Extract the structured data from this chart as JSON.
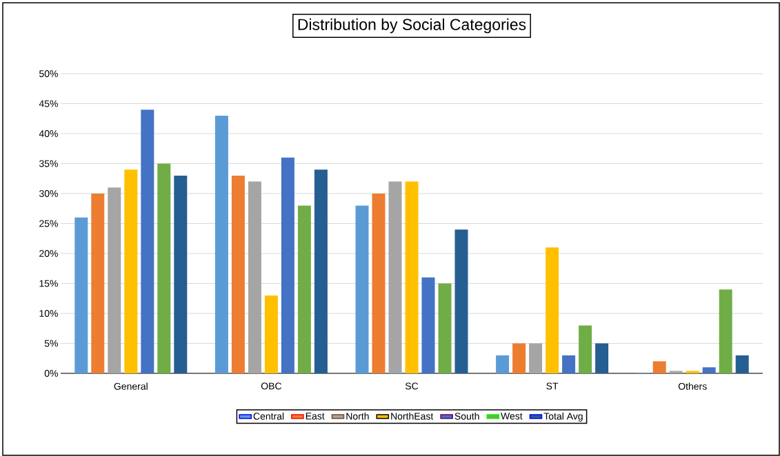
{
  "chart_data": {
    "type": "bar",
    "title": "Distribution by Social Categories",
    "categories": [
      "General",
      "OBC",
      "SC",
      "ST",
      "Others"
    ],
    "series": [
      {
        "name": "Central",
        "color": "#5b9bd5",
        "values": [
          26,
          43,
          28,
          3,
          0.1
        ]
      },
      {
        "name": "East",
        "color": "#ed7d31",
        "values": [
          30,
          33,
          30,
          5,
          2
        ]
      },
      {
        "name": "North",
        "color": "#a5a5a5",
        "values": [
          31,
          32,
          32,
          5,
          0.4
        ]
      },
      {
        "name": "NorthEast",
        "color": "#ffc000",
        "values": [
          34,
          13,
          32,
          21,
          0.4
        ]
      },
      {
        "name": "South",
        "color": "#4472c4",
        "values": [
          44,
          36,
          16,
          3,
          1
        ]
      },
      {
        "name": "West",
        "color": "#70ad47",
        "values": [
          35,
          28,
          15,
          8,
          14
        ]
      },
      {
        "name": "Total Avg",
        "color": "#255e91",
        "values": [
          33,
          34,
          24,
          5,
          3
        ]
      }
    ],
    "ylim": [
      0,
      50
    ],
    "yticks": [
      {
        "value": 0,
        "label": "0%"
      },
      {
        "value": 5,
        "label": "5%"
      },
      {
        "value": 10,
        "label": "10%"
      },
      {
        "value": 15,
        "label": "15%"
      },
      {
        "value": 20,
        "label": "20%"
      },
      {
        "value": 25,
        "label": "25%"
      },
      {
        "value": 30,
        "label": "30%"
      },
      {
        "value": 35,
        "label": "35%"
      },
      {
        "value": 40,
        "label": "40%"
      },
      {
        "value": 45,
        "label": "45%"
      },
      {
        "value": 50,
        "label": "50%"
      }
    ],
    "grid": "y",
    "legend": "bottom"
  }
}
